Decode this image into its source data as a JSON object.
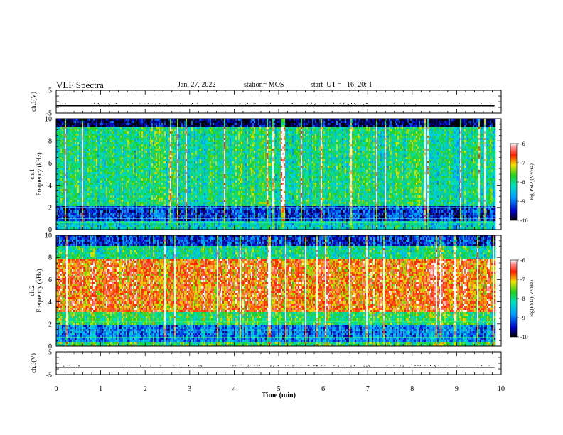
{
  "header": {
    "title": "VLF Spectra",
    "date": "Jan. 27, 2022",
    "station": "station= MOS",
    "start_ut": "start  UT =   16: 20: 1"
  },
  "chart_data": [
    {
      "type": "line",
      "panel": "ch1-voltage",
      "ylabel": "ch.1(V)",
      "ylim": [
        -5,
        5
      ],
      "yticks": [
        "5",
        "-5"
      ],
      "xlim": [
        0,
        10
      ],
      "series": [
        {
          "x": [
            0,
            9.85
          ],
          "y": [
            -1.8,
            -1.8
          ]
        }
      ]
    },
    {
      "type": "heatmap",
      "panel": "ch1-spectrogram",
      "ylabel": "ch.1\nFrequency (kHz)",
      "ylim": [
        0,
        10
      ],
      "yticks": [
        "0",
        "2",
        "4",
        "6",
        "8",
        "10"
      ],
      "xlim": [
        0,
        10
      ],
      "data_extent_x": [
        0,
        9.85
      ],
      "colorbar": {
        "label": "log(PSD)(V²/Hz)",
        "range": [
          -10,
          -6
        ],
        "ticks": [
          "-6",
          "-7",
          "-8",
          "-9",
          "-10"
        ]
      }
    },
    {
      "type": "heatmap",
      "panel": "ch2-spectrogram",
      "ylabel": "ch.2\nFrequency (kHz)",
      "ylim": [
        0,
        10
      ],
      "yticks": [
        "0",
        "2",
        "4",
        "6",
        "8",
        "10"
      ],
      "xlim": [
        0,
        10
      ],
      "data_extent_x": [
        0,
        9.85
      ],
      "colorbar": {
        "label": "log(PSD)(V²/Hz)",
        "range": [
          -10,
          -6
        ],
        "ticks": [
          "-6",
          "-7",
          "-8",
          "-9",
          "-10"
        ]
      }
    },
    {
      "type": "line",
      "panel": "ch3-voltage",
      "ylabel": "ch.3(V)",
      "ylim": [
        -5,
        5
      ],
      "yticks": [
        "5",
        "-5"
      ],
      "xlim": [
        0,
        10
      ],
      "series": [
        {
          "x": [
            0,
            9.85
          ],
          "y": [
            -1.8,
            -1.8
          ]
        }
      ]
    }
  ],
  "x_axis": {
    "label": "Time  (min)",
    "ticks": [
      "0",
      "1",
      "2",
      "3",
      "4",
      "5",
      "6",
      "7",
      "8",
      "9",
      "10"
    ]
  }
}
